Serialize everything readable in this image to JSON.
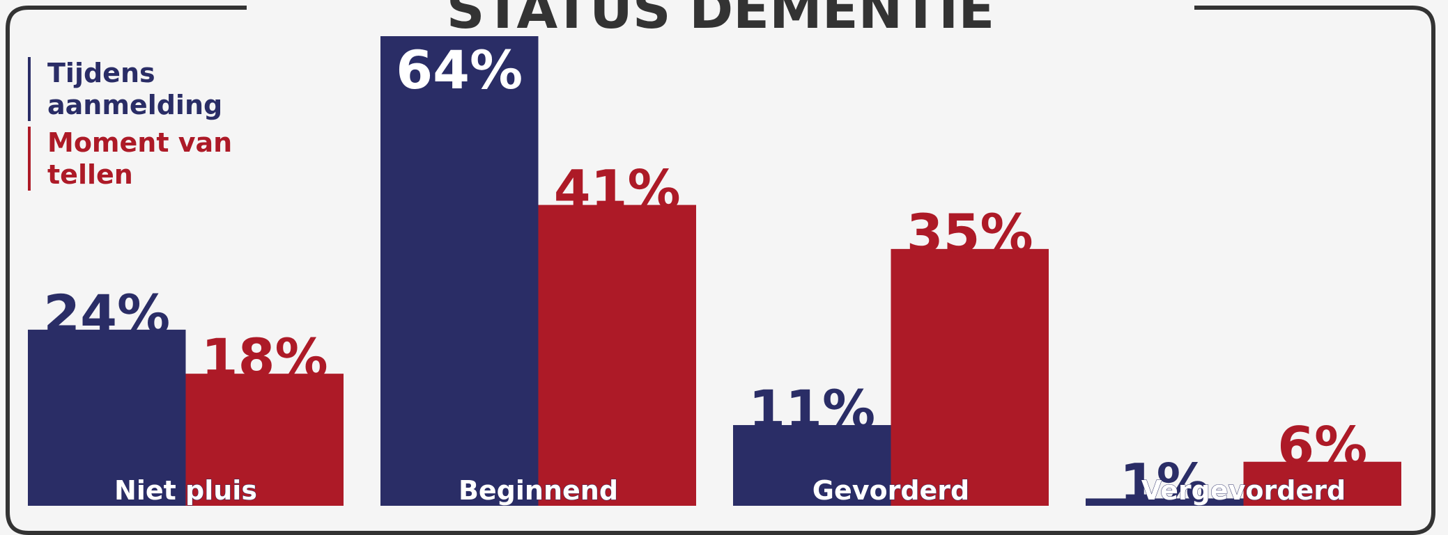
{
  "chart_data": {
    "type": "bar",
    "title": "STATUS DEMENTIE",
    "categories": [
      "Niet pluis",
      "Beginnend",
      "Gevorderd",
      "Vergevorderd"
    ],
    "series": [
      {
        "name": "Tijdens aanmelding",
        "color": "#2a2d66",
        "values": [
          24,
          64,
          11,
          1
        ],
        "value_labels": [
          "24%",
          "64%",
          "11%",
          "1%"
        ]
      },
      {
        "name": "Moment van tellen",
        "color": "#ad1a27",
        "values": [
          18,
          41,
          35,
          6
        ],
        "value_labels": [
          "18%",
          "41%",
          "35%",
          "6%"
        ]
      }
    ]
  }
}
